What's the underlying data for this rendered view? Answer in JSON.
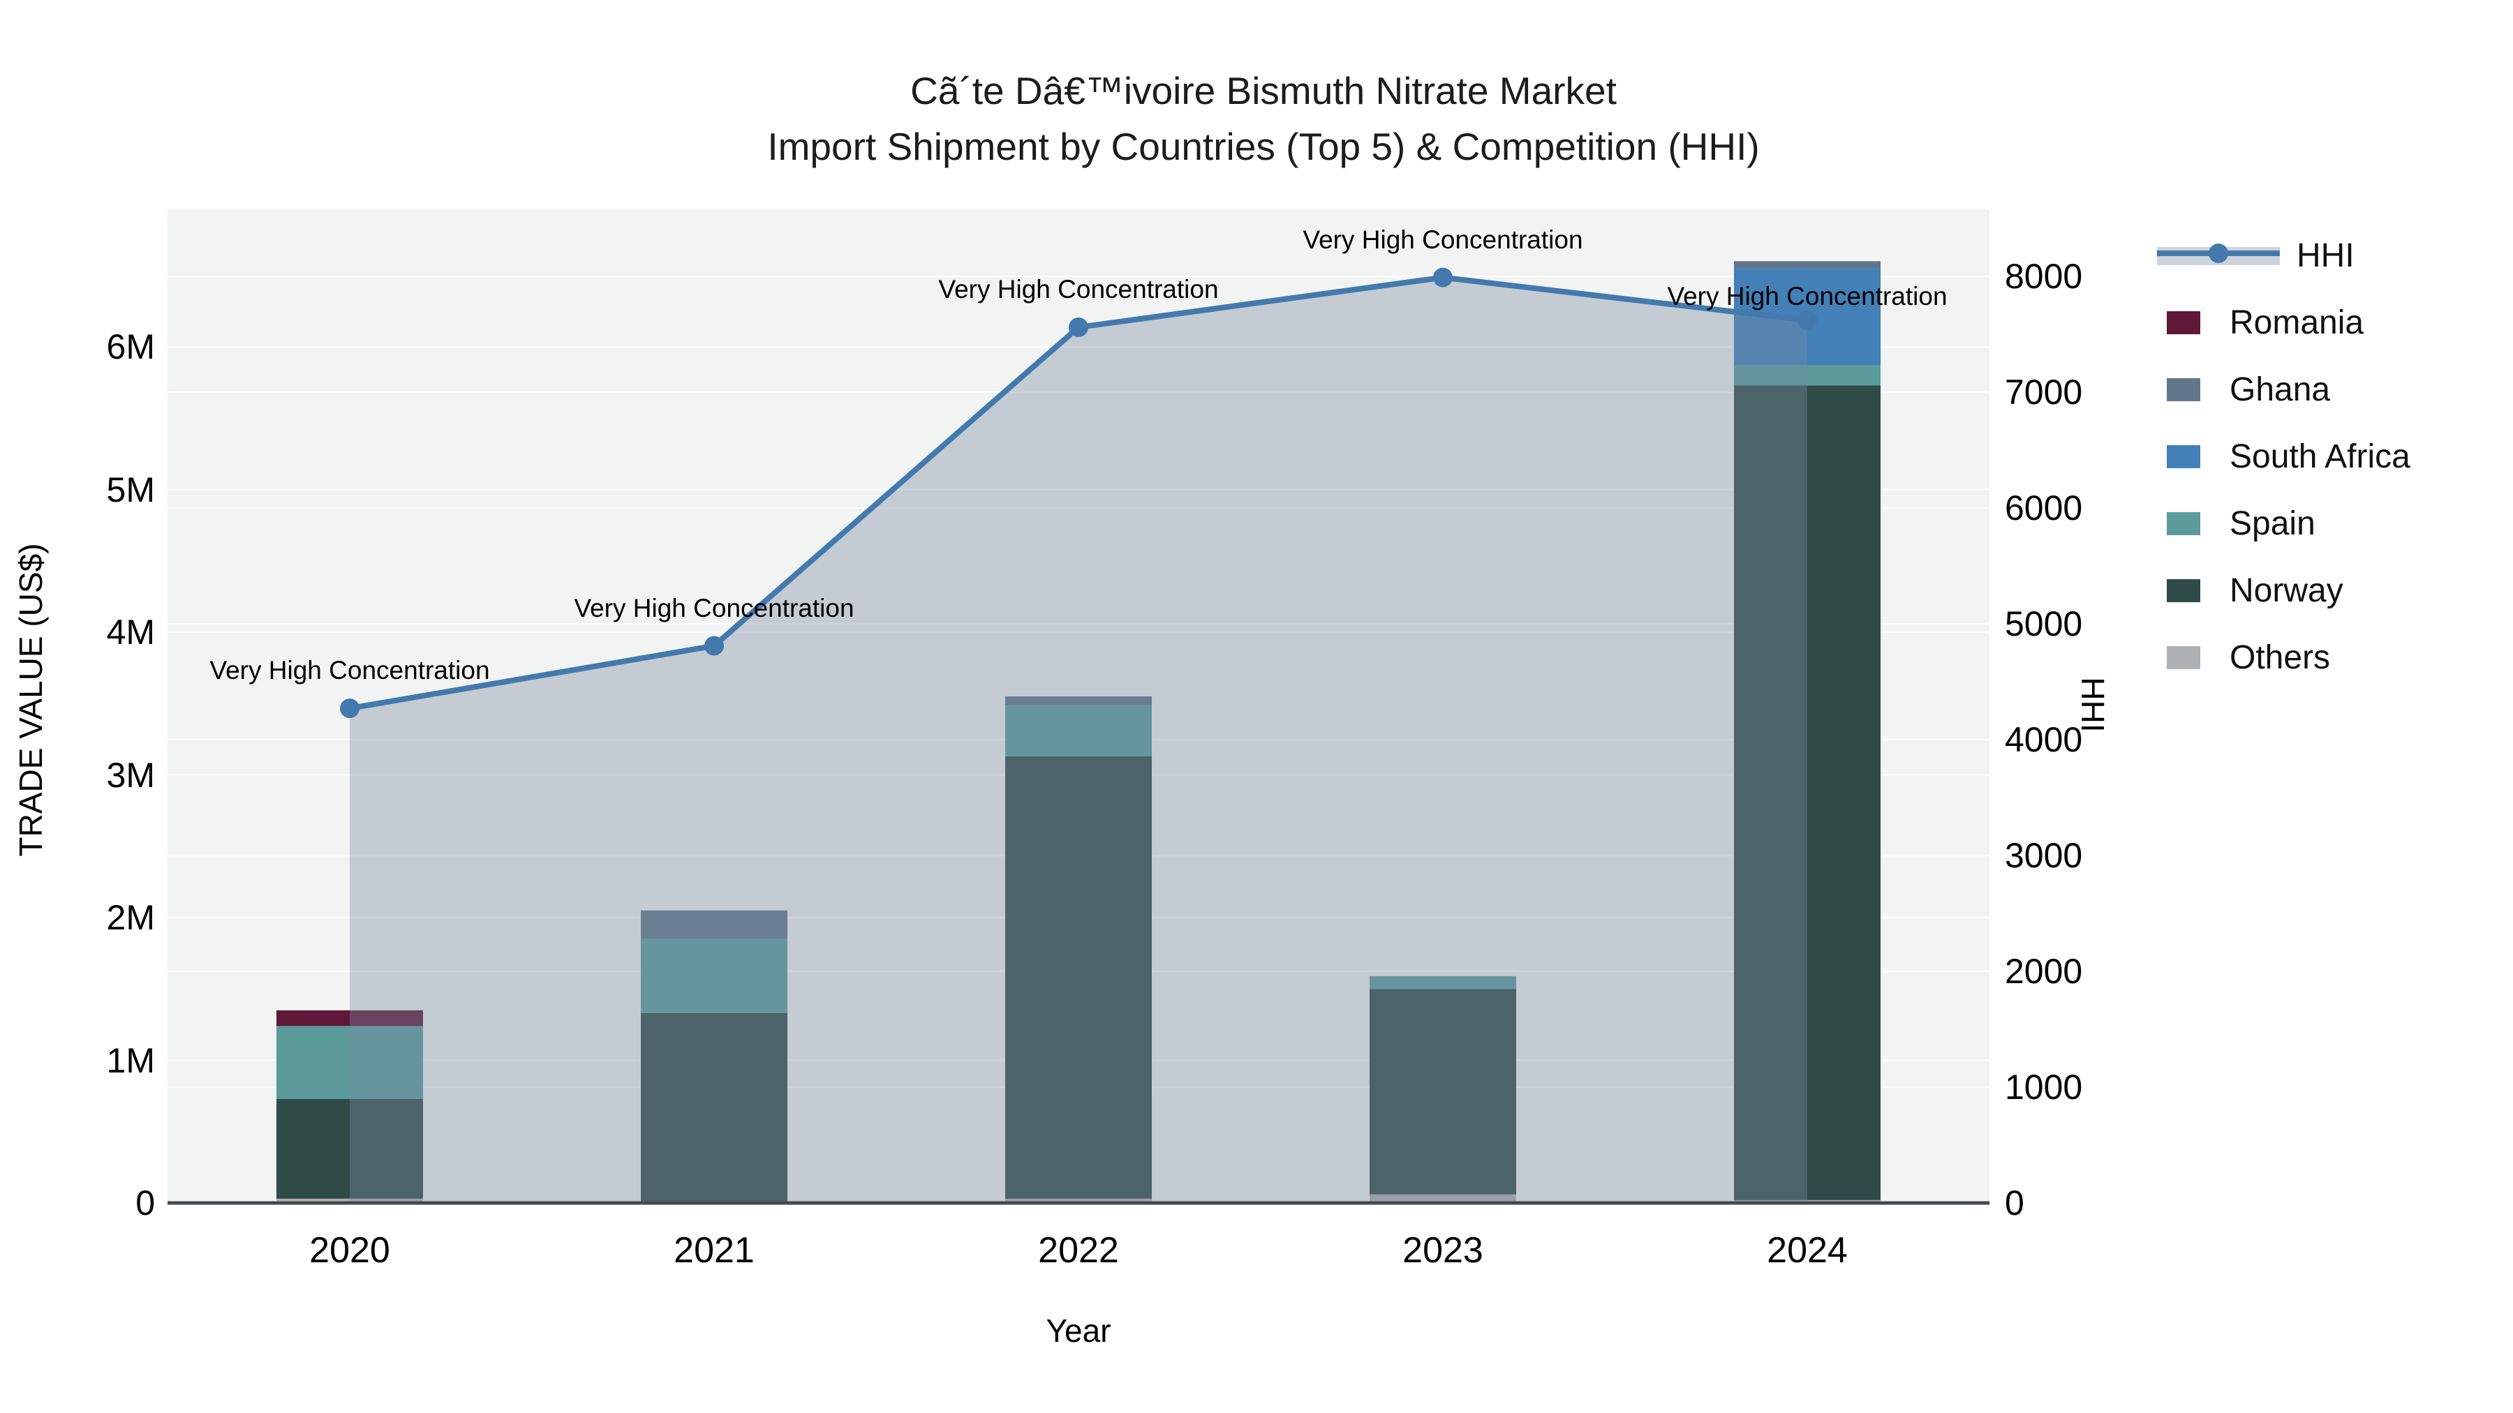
{
  "title": {
    "line1": "Cã´te Dâ€™ivoire Bismuth Nitrate Market",
    "line2": "Import Shipment by Countries (Top 5) & Competition (HHI)"
  },
  "colors": {
    "plot_background": "#f2f3f3",
    "gridline": "#ffffff",
    "axis_line": "#45494d",
    "hhi_line": "#4379ad",
    "hhi_area_fill": "rgba(120,140,160,0.38)",
    "text": "#111111"
  },
  "chart_data": {
    "type": "bar+line",
    "title": "Cã´te Dâ€™ivoire Bismuth Nitrate Market Import Shipment by Countries (Top 5) & Competition (HHI)",
    "categories": [
      "2020",
      "2021",
      "2022",
      "2023",
      "2024"
    ],
    "xlabel": "Year",
    "ylabel_left": "TRADE VALUE (US$)",
    "ylabel_right": "HHI",
    "bar_value_unit": "US$ millions",
    "stack_order_bottom_to_top": [
      "Others",
      "Norway",
      "Spain",
      "South Africa",
      "Ghana",
      "Romania"
    ],
    "series": [
      {
        "name": "Romania",
        "color": "#5f1838",
        "values": [
          0.11,
          0,
          0,
          0,
          0
        ]
      },
      {
        "name": "Ghana",
        "color": "#62768a",
        "values": [
          0,
          0.2,
          0.06,
          0,
          0.05
        ]
      },
      {
        "name": "South Africa",
        "color": "#4380b8",
        "values": [
          0,
          0,
          0,
          0,
          0.68
        ]
      },
      {
        "name": "Spain",
        "color": "#5c9b9b",
        "values": [
          0.51,
          0.52,
          0.36,
          0.09,
          0.14
        ]
      },
      {
        "name": "Norway",
        "color": "#2f4b48",
        "values": [
          0.7,
          1.33,
          3.1,
          1.44,
          5.71
        ]
      },
      {
        "name": "Others",
        "color": "#aeb1b4",
        "values": [
          0.03,
          0,
          0.03,
          0.06,
          0.02
        ]
      }
    ],
    "hhi_series": {
      "name": "HHI",
      "values": [
        4270,
        4810,
        7560,
        7990,
        7620
      ]
    },
    "annotations": [
      "Very High Concentration",
      "Very High Concentration",
      "Very High Concentration",
      "Very High Concentration",
      "Very High Concentration"
    ],
    "left_axis": {
      "title": "TRADE VALUE (US$)",
      "tick_labels": [
        "0",
        "1M",
        "2M",
        "3M",
        "4M",
        "5M",
        "6M"
      ],
      "tick_values": [
        0,
        1,
        2,
        3,
        4,
        5,
        6
      ]
    },
    "right_axis": {
      "title": "HHI",
      "tick_labels": [
        "0",
        "1000",
        "2000",
        "3000",
        "4000",
        "5000",
        "6000",
        "7000",
        "8000"
      ],
      "tick_values": [
        0,
        1000,
        2000,
        3000,
        4000,
        5000,
        6000,
        7000,
        8000
      ]
    },
    "x_axis": {
      "title": "Year"
    },
    "legend_order": [
      "HHI",
      "Romania",
      "Ghana",
      "South Africa",
      "Spain",
      "Norway",
      "Others"
    ],
    "grid": true,
    "legend_position": "right"
  }
}
